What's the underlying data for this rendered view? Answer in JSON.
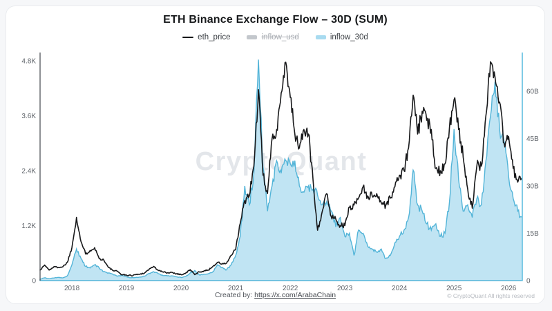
{
  "page": {
    "title": "ETH Binance Exchange Flow – 30D (SUM)",
    "watermark": "CryptoQuant",
    "footer": {
      "created_by_label": "Created by:",
      "created_by_link": "https://x.com/ArabaChain",
      "copyright": "© CryptoQuant All rights reserved"
    }
  },
  "legend": [
    {
      "id": "eth_price",
      "label": "eth_price",
      "color": "#17181a",
      "type": "line",
      "disabled": false
    },
    {
      "id": "inflow_usd",
      "label": "inflow_usd",
      "color": "#b9bdc3",
      "type": "area",
      "disabled": true
    },
    {
      "id": "inflow_30d",
      "label": "inflow_30d",
      "color": "#a8dbf0",
      "type": "area",
      "disabled": false
    }
  ],
  "chart_data": {
    "type": "mixed",
    "title": "ETH Binance Exchange Flow – 30D (SUM)",
    "x_start": 2017.417,
    "x_step_years": 0.083333,
    "x_axis": {
      "ticks": [
        2018,
        2019,
        2020,
        2021,
        2022,
        2023,
        2024,
        2025,
        2026
      ]
    },
    "left_axis": {
      "series": "eth_price",
      "unit": "K USD",
      "tick_labels": [
        "0",
        "1.2K",
        "2.4K",
        "3.6K",
        "4.8K"
      ],
      "tick_values": [
        0,
        1.2,
        2.4,
        3.6,
        4.8
      ],
      "range": [
        0,
        4.98
      ]
    },
    "right_axis": {
      "series": "inflow_30d",
      "unit": "B USD",
      "tick_labels": [
        "0",
        "15B",
        "30B",
        "45B",
        "60B"
      ],
      "tick_values": [
        0,
        15,
        30,
        45,
        60
      ],
      "range": [
        0,
        72.3
      ]
    },
    "grid": false,
    "legend_position": "top",
    "series": [
      {
        "name": "eth_price",
        "type": "line",
        "axis": "left",
        "unit": "K USD",
        "color": "#17181a",
        "values": [
          0.23,
          0.34,
          0.23,
          0.3,
          0.29,
          0.3,
          0.4,
          0.72,
          1.38,
          0.85,
          0.58,
          0.66,
          0.72,
          0.48,
          0.45,
          0.29,
          0.22,
          0.2,
          0.13,
          0.12,
          0.11,
          0.13,
          0.14,
          0.17,
          0.25,
          0.31,
          0.22,
          0.19,
          0.17,
          0.18,
          0.15,
          0.13,
          0.16,
          0.24,
          0.13,
          0.19,
          0.21,
          0.23,
          0.31,
          0.4,
          0.36,
          0.38,
          0.55,
          0.68,
          1.25,
          1.75,
          1.85,
          2.5,
          4.17,
          2.3,
          1.9,
          3.1,
          3.3,
          4.1,
          4.77,
          4.0,
          3.2,
          2.9,
          3.3,
          3.2,
          2.2,
          1.1,
          1.5,
          1.9,
          1.4,
          1.35,
          1.2,
          1.2,
          1.6,
          1.65,
          1.8,
          2.05,
          1.85,
          1.85,
          1.9,
          1.7,
          1.65,
          1.8,
          2.05,
          2.3,
          2.4,
          2.9,
          4.05,
          3.2,
          3.7,
          3.5,
          3.3,
          2.45,
          2.4,
          2.55,
          3.35,
          3.95,
          3.3,
          2.7,
          2.0,
          1.58,
          2.5,
          2.5,
          3.6,
          4.78,
          4.45,
          3.9,
          3.0,
          3.15,
          2.45,
          2.15,
          2.25
        ]
      },
      {
        "name": "inflow_30d",
        "type": "area",
        "axis": "right",
        "unit": "B USD",
        "fill": "#c0e4f3",
        "stroke": "#52b4d8",
        "values": [
          0.4,
          0.9,
          0.6,
          0.8,
          1.0,
          0.9,
          1.5,
          5.0,
          10.0,
          7.0,
          4.5,
          4.0,
          5.0,
          4.0,
          2.8,
          2.4,
          2.0,
          1.4,
          1.6,
          1.2,
          0.9,
          1.0,
          1.1,
          1.4,
          2.3,
          2.8,
          2.2,
          1.6,
          1.5,
          1.5,
          1.2,
          1.0,
          1.3,
          2.4,
          3.2,
          1.8,
          2.0,
          2.2,
          2.8,
          5.0,
          4.2,
          3.4,
          5.0,
          8.0,
          14,
          30,
          24,
          34,
          70,
          36,
          22,
          30,
          38,
          34,
          38,
          37,
          38,
          30,
          28,
          30,
          29,
          27,
          24,
          25,
          22,
          17,
          20,
          14,
          15,
          8,
          16,
          15,
          11,
          10,
          9,
          10,
          7,
          8,
          12,
          14,
          16,
          20,
          35,
          24,
          22,
          18,
          16,
          18,
          14,
          15,
          25,
          48,
          32,
          22,
          24,
          20,
          26,
          24,
          38,
          52,
          63,
          48,
          44,
          33,
          26,
          22,
          20
        ]
      }
    ]
  }
}
